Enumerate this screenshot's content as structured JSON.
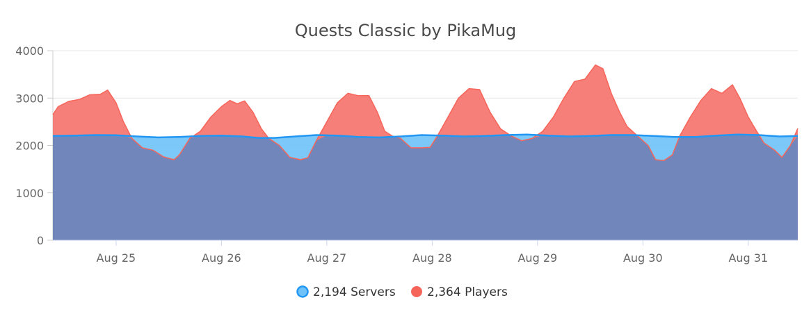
{
  "chart_data": {
    "type": "area",
    "title": "Quests Classic by PikaMug",
    "xlabel": "",
    "ylabel": "",
    "ylim": [
      0,
      4000
    ],
    "yticks": [
      0,
      1000,
      2000,
      3000,
      4000
    ],
    "xlim": [
      24.4,
      31.47
    ],
    "xticks": [
      {
        "x": 25,
        "label": "Aug 25"
      },
      {
        "x": 26,
        "label": "Aug 26"
      },
      {
        "x": 27,
        "label": "Aug 27"
      },
      {
        "x": 28,
        "label": "Aug 28"
      },
      {
        "x": 29,
        "label": "Aug 29"
      },
      {
        "x": 30,
        "label": "Aug 30"
      },
      {
        "x": 31,
        "label": "Aug 31"
      }
    ],
    "grid": true,
    "legend_position": "bottom-center",
    "series": [
      {
        "name": "Servers",
        "legend_label": "2,194 Servers",
        "color": "#2196f3",
        "fill": "#6ec2f7",
        "points": [
          [
            24.4,
            2200
          ],
          [
            24.6,
            2210
          ],
          [
            24.8,
            2220
          ],
          [
            25.0,
            2215
          ],
          [
            25.2,
            2190
          ],
          [
            25.4,
            2170
          ],
          [
            25.6,
            2180
          ],
          [
            25.8,
            2200
          ],
          [
            26.0,
            2210
          ],
          [
            26.2,
            2190
          ],
          [
            26.35,
            2160
          ],
          [
            26.5,
            2160
          ],
          [
            26.7,
            2190
          ],
          [
            26.9,
            2220
          ],
          [
            27.1,
            2210
          ],
          [
            27.3,
            2180
          ],
          [
            27.5,
            2170
          ],
          [
            27.7,
            2190
          ],
          [
            27.9,
            2220
          ],
          [
            28.1,
            2210
          ],
          [
            28.3,
            2190
          ],
          [
            28.5,
            2200
          ],
          [
            28.7,
            2220
          ],
          [
            28.9,
            2230
          ],
          [
            29.1,
            2210
          ],
          [
            29.3,
            2190
          ],
          [
            29.5,
            2200
          ],
          [
            29.7,
            2220
          ],
          [
            29.9,
            2220
          ],
          [
            30.1,
            2200
          ],
          [
            30.3,
            2180
          ],
          [
            30.5,
            2180
          ],
          [
            30.7,
            2210
          ],
          [
            30.9,
            2230
          ],
          [
            31.1,
            2220
          ],
          [
            31.3,
            2190
          ],
          [
            31.47,
            2200
          ]
        ]
      },
      {
        "name": "Players",
        "legend_label": "2,364 Players",
        "color": "#f6655a",
        "fill": "#f6716a",
        "points": [
          [
            24.4,
            2650
          ],
          [
            24.45,
            2820
          ],
          [
            24.55,
            2930
          ],
          [
            24.65,
            2970
          ],
          [
            24.75,
            3070
          ],
          [
            24.85,
            3080
          ],
          [
            24.92,
            3170
          ],
          [
            25.0,
            2900
          ],
          [
            25.07,
            2500
          ],
          [
            25.15,
            2150
          ],
          [
            25.25,
            1950
          ],
          [
            25.35,
            1900
          ],
          [
            25.45,
            1760
          ],
          [
            25.55,
            1700
          ],
          [
            25.6,
            1800
          ],
          [
            25.7,
            2150
          ],
          [
            25.8,
            2300
          ],
          [
            25.9,
            2600
          ],
          [
            26.0,
            2820
          ],
          [
            26.08,
            2950
          ],
          [
            26.15,
            2880
          ],
          [
            26.22,
            2940
          ],
          [
            26.3,
            2700
          ],
          [
            26.38,
            2350
          ],
          [
            26.45,
            2150
          ],
          [
            26.55,
            2000
          ],
          [
            26.65,
            1750
          ],
          [
            26.75,
            1700
          ],
          [
            26.82,
            1740
          ],
          [
            26.9,
            2100
          ],
          [
            27.0,
            2500
          ],
          [
            27.1,
            2900
          ],
          [
            27.2,
            3100
          ],
          [
            27.3,
            3050
          ],
          [
            27.4,
            3050
          ],
          [
            27.48,
            2700
          ],
          [
            27.55,
            2300
          ],
          [
            27.62,
            2200
          ],
          [
            27.7,
            2150
          ],
          [
            27.8,
            1950
          ],
          [
            27.9,
            1950
          ],
          [
            27.98,
            1960
          ],
          [
            28.05,
            2200
          ],
          [
            28.15,
            2600
          ],
          [
            28.25,
            3000
          ],
          [
            28.35,
            3200
          ],
          [
            28.45,
            3180
          ],
          [
            28.55,
            2700
          ],
          [
            28.65,
            2350
          ],
          [
            28.75,
            2200
          ],
          [
            28.85,
            2100
          ],
          [
            28.95,
            2150
          ],
          [
            29.05,
            2300
          ],
          [
            29.15,
            2600
          ],
          [
            29.25,
            3000
          ],
          [
            29.35,
            3350
          ],
          [
            29.45,
            3400
          ],
          [
            29.55,
            3700
          ],
          [
            29.62,
            3620
          ],
          [
            29.7,
            3100
          ],
          [
            29.78,
            2700
          ],
          [
            29.85,
            2400
          ],
          [
            29.95,
            2200
          ],
          [
            30.05,
            2000
          ],
          [
            30.12,
            1700
          ],
          [
            30.2,
            1680
          ],
          [
            30.28,
            1800
          ],
          [
            30.35,
            2200
          ],
          [
            30.45,
            2600
          ],
          [
            30.55,
            2950
          ],
          [
            30.65,
            3200
          ],
          [
            30.75,
            3100
          ],
          [
            30.85,
            3280
          ],
          [
            30.92,
            3000
          ],
          [
            31.0,
            2600
          ],
          [
            31.08,
            2300
          ],
          [
            31.15,
            2050
          ],
          [
            31.25,
            1900
          ],
          [
            31.32,
            1750
          ],
          [
            31.4,
            2000
          ],
          [
            31.47,
            2360
          ]
        ]
      }
    ]
  }
}
